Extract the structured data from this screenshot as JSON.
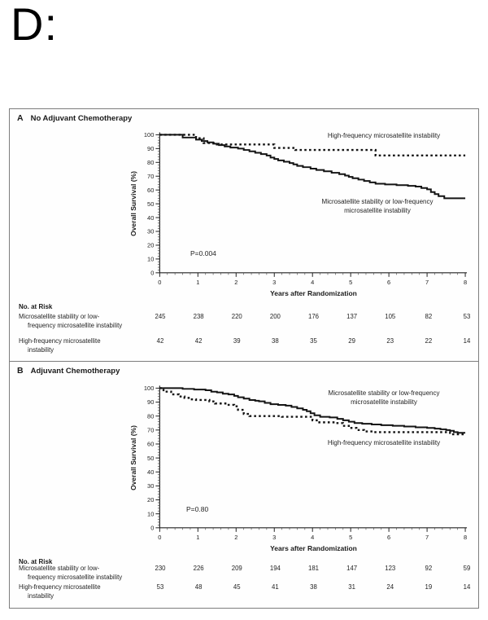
{
  "page_label": "D:",
  "colors": {
    "curve": "#141414",
    "axis": "#222222",
    "border": "#7d7d7d",
    "text": "#1f1f1f"
  },
  "chart_data": [
    {
      "type": "line",
      "panel_letter": "A",
      "title": "No Adjuvant Chemotherapy",
      "xlabel": "Years after Randomization",
      "ylabel": "Overall Survival (%)",
      "xlim": [
        0,
        8
      ],
      "ylim": [
        0,
        100
      ],
      "xticks": [
        0,
        1,
        2,
        3,
        4,
        5,
        6,
        7,
        8
      ],
      "yticks": [
        0,
        10,
        20,
        30,
        40,
        50,
        60,
        70,
        80,
        90,
        100
      ],
      "grid": false,
      "p_value": "P=0.004",
      "series": [
        {
          "name": "High-frequency microsatellite instability",
          "line_style": "dashed",
          "label_lines": [
            "High-frequency microsatellite instability"
          ],
          "points": [
            [
              0,
              100
            ],
            [
              0.95,
              97.5
            ],
            [
              1.15,
              94
            ],
            [
              1.45,
              93
            ],
            [
              3.0,
              90.5
            ],
            [
              3.55,
              89
            ],
            [
              5.65,
              85
            ],
            [
              8,
              85
            ]
          ]
        },
        {
          "name": "Microsatellite stability or low-frequency microsatellite instability",
          "line_style": "solid",
          "label_lines": [
            "Microsatellite stability or low-frequency",
            "microsatellite instability"
          ],
          "points": [
            [
              0,
              100
            ],
            [
              0.6,
              98
            ],
            [
              0.95,
              96.5
            ],
            [
              1.1,
              95.5
            ],
            [
              1.25,
              94.5
            ],
            [
              1.4,
              93.5
            ],
            [
              1.55,
              92.5
            ],
            [
              1.7,
              91.5
            ],
            [
              1.85,
              90.7
            ],
            [
              2.05,
              90
            ],
            [
              2.2,
              89
            ],
            [
              2.35,
              88
            ],
            [
              2.5,
              87
            ],
            [
              2.65,
              86
            ],
            [
              2.8,
              85
            ],
            [
              2.9,
              83.5
            ],
            [
              3.0,
              82.5
            ],
            [
              3.1,
              81.5
            ],
            [
              3.25,
              80.5
            ],
            [
              3.4,
              79.5
            ],
            [
              3.5,
              78.5
            ],
            [
              3.6,
              77.5
            ],
            [
              3.75,
              76.5
            ],
            [
              3.95,
              75.5
            ],
            [
              4.1,
              74.5
            ],
            [
              4.3,
              73.5
            ],
            [
              4.5,
              72.5
            ],
            [
              4.7,
              71.5
            ],
            [
              4.85,
              70.5
            ],
            [
              4.95,
              69.5
            ],
            [
              5.05,
              68.5
            ],
            [
              5.2,
              67.5
            ],
            [
              5.35,
              66.5
            ],
            [
              5.5,
              65.5
            ],
            [
              5.65,
              64.5
            ],
            [
              5.9,
              64
            ],
            [
              6.2,
              63.5
            ],
            [
              6.5,
              63
            ],
            [
              6.7,
              62.5
            ],
            [
              6.85,
              61.5
            ],
            [
              7.0,
              60.5
            ],
            [
              7.1,
              58.5
            ],
            [
              7.2,
              57
            ],
            [
              7.3,
              55.5
            ],
            [
              7.45,
              54
            ],
            [
              8,
              54
            ]
          ]
        }
      ],
      "risk_table": {
        "title": "No. at Risk",
        "rows": [
          {
            "label_lines": [
              "Microsatellite stability or low-",
              "frequency microsatellite instability"
            ],
            "values": [
              "245",
              "238",
              "220",
              "200",
              "176",
              "137",
              "105",
              "82",
              "53"
            ]
          },
          {
            "label_lines": [
              "High-frequency microsatellite",
              "instability"
            ],
            "values": [
              "42",
              "42",
              "39",
              "38",
              "35",
              "29",
              "23",
              "22",
              "14"
            ]
          }
        ]
      }
    },
    {
      "type": "line",
      "panel_letter": "B",
      "title": "Adjuvant Chemotherapy",
      "xlabel": "Years after Randomization",
      "ylabel": "Overall Survival (%)",
      "xlim": [
        0,
        8
      ],
      "ylim": [
        0,
        100
      ],
      "xticks": [
        0,
        1,
        2,
        3,
        4,
        5,
        6,
        7,
        8
      ],
      "yticks": [
        0,
        10,
        20,
        30,
        40,
        50,
        60,
        70,
        80,
        90,
        100
      ],
      "grid": false,
      "p_value": "P=0.80",
      "series": [
        {
          "name": "High-frequency microsatellite instability",
          "line_style": "dashed",
          "label_lines": [
            "High-frequency microsatellite instability"
          ],
          "points": [
            [
              0,
              100
            ],
            [
              0.1,
              97.5
            ],
            [
              0.3,
              95.5
            ],
            [
              0.5,
              94
            ],
            [
              0.65,
              93
            ],
            [
              0.8,
              92
            ],
            [
              0.95,
              91.5
            ],
            [
              1.3,
              90.5
            ],
            [
              1.45,
              89
            ],
            [
              1.75,
              88
            ],
            [
              1.95,
              87
            ],
            [
              2.05,
              84.5
            ],
            [
              2.2,
              81.5
            ],
            [
              2.35,
              80
            ],
            [
              3.2,
              79.5
            ],
            [
              4.0,
              77
            ],
            [
              4.15,
              75.5
            ],
            [
              4.6,
              75
            ],
            [
              4.8,
              73
            ],
            [
              4.95,
              71.5
            ],
            [
              5.15,
              70
            ],
            [
              5.35,
              69
            ],
            [
              5.6,
              68.5
            ],
            [
              7.6,
              67
            ],
            [
              8,
              67
            ]
          ]
        },
        {
          "name": "Microsatellite stability or low-frequency microsatellite instability",
          "line_style": "solid",
          "label_lines": [
            "Microsatellite stability or low-frequency",
            "microsatellite instability"
          ],
          "points": [
            [
              0,
              100
            ],
            [
              0.6,
              99.5
            ],
            [
              0.9,
              99
            ],
            [
              1.2,
              98.5
            ],
            [
              1.35,
              97.5
            ],
            [
              1.5,
              97
            ],
            [
              1.65,
              96
            ],
            [
              1.8,
              95.5
            ],
            [
              1.95,
              94.5
            ],
            [
              2.05,
              93.5
            ],
            [
              2.2,
              92.5
            ],
            [
              2.35,
              91.5
            ],
            [
              2.5,
              91
            ],
            [
              2.6,
              90.5
            ],
            [
              2.75,
              89.5
            ],
            [
              2.9,
              88.5
            ],
            [
              3.1,
              88
            ],
            [
              3.3,
              87.5
            ],
            [
              3.45,
              86.5
            ],
            [
              3.6,
              85.5
            ],
            [
              3.75,
              84.5
            ],
            [
              3.85,
              83.5
            ],
            [
              3.95,
              82
            ],
            [
              4.05,
              80.5
            ],
            [
              4.2,
              79.5
            ],
            [
              4.45,
              79
            ],
            [
              4.65,
              78
            ],
            [
              4.8,
              77
            ],
            [
              4.95,
              76
            ],
            [
              5.1,
              75
            ],
            [
              5.3,
              74.5
            ],
            [
              5.55,
              74
            ],
            [
              5.8,
              73.5
            ],
            [
              6.1,
              73
            ],
            [
              6.4,
              72.5
            ],
            [
              6.7,
              72
            ],
            [
              7.0,
              71.5
            ],
            [
              7.2,
              71
            ],
            [
              7.35,
              70.5
            ],
            [
              7.5,
              70
            ],
            [
              7.6,
              69.5
            ],
            [
              7.7,
              68.5
            ],
            [
              7.8,
              68
            ],
            [
              8,
              68
            ]
          ]
        }
      ],
      "risk_table": {
        "title": "No. at Risk",
        "rows": [
          {
            "label_lines": [
              "Microsatellite stability or low-",
              "frequency microsatellite instability"
            ],
            "values": [
              "230",
              "226",
              "209",
              "194",
              "181",
              "147",
              "123",
              "92",
              "59"
            ]
          },
          {
            "label_lines": [
              "High-frequency microsatellite",
              "instability"
            ],
            "values": [
              "53",
              "48",
              "45",
              "41",
              "38",
              "31",
              "24",
              "19",
              "14"
            ]
          }
        ]
      }
    }
  ]
}
